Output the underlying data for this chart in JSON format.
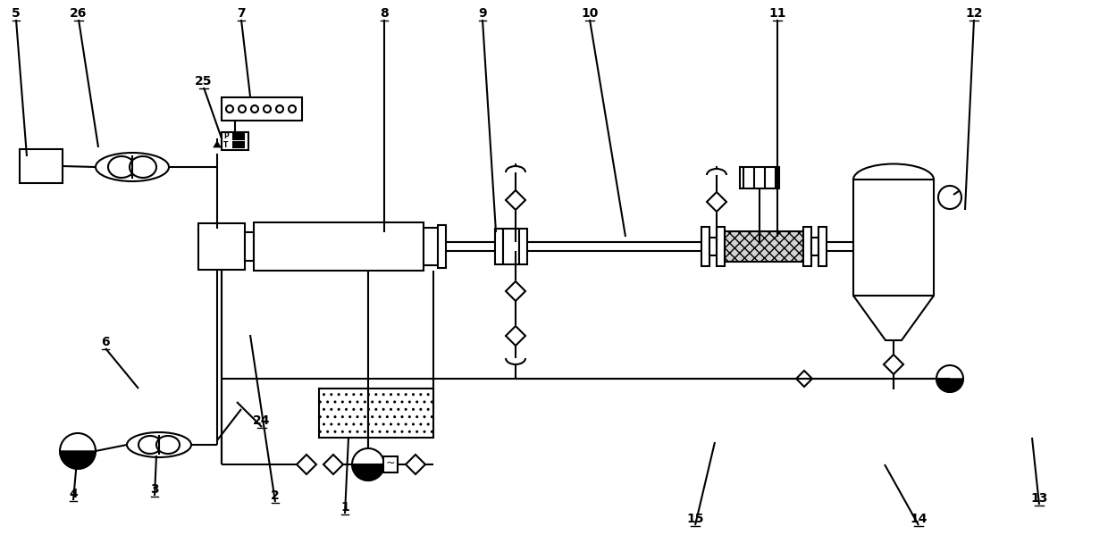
{
  "bg_color": "#ffffff",
  "lc": "#000000",
  "lw": 1.5,
  "labels": [
    [
      "5",
      18,
      22
    ],
    [
      "26",
      88,
      22
    ],
    [
      "7",
      270,
      22
    ],
    [
      "8",
      430,
      22
    ],
    [
      "9",
      540,
      22
    ],
    [
      "10",
      660,
      22
    ],
    [
      "11",
      870,
      22
    ],
    [
      "12",
      1090,
      22
    ],
    [
      "25",
      228,
      98
    ],
    [
      "6",
      118,
      390
    ],
    [
      "4",
      82,
      560
    ],
    [
      "3",
      173,
      555
    ],
    [
      "24",
      293,
      478
    ],
    [
      "2",
      308,
      562
    ],
    [
      "1",
      386,
      575
    ],
    [
      "15",
      778,
      588
    ],
    [
      "14",
      1028,
      588
    ],
    [
      "13",
      1163,
      565
    ]
  ]
}
